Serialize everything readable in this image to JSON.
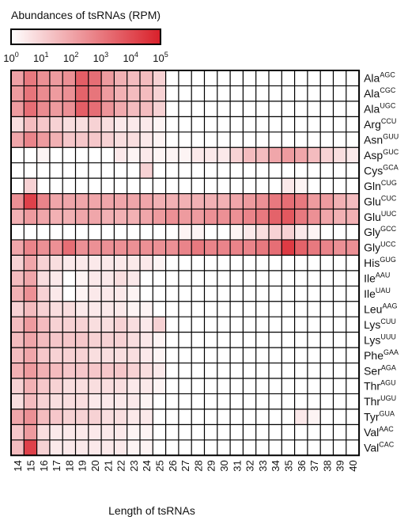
{
  "chart_data": {
    "type": "heatmap",
    "legend": {
      "title": "Abundances of tsRNAs (RPM)",
      "ticks": [
        "0",
        "1",
        "2",
        "3",
        "4",
        "5"
      ],
      "tick_base": "10",
      "color_low": "#ffffff",
      "color_high": "#d9202a",
      "range_log10": [
        0,
        5
      ]
    },
    "xlabel": "Length of tsRNAs",
    "x_labels": [
      "14",
      "15",
      "16",
      "17",
      "18",
      "19",
      "20",
      "21",
      "22",
      "23",
      "24",
      "25",
      "26",
      "27",
      "28",
      "29",
      "30",
      "31",
      "32",
      "33",
      "34",
      "35",
      "36",
      "37",
      "38",
      "39",
      "40"
    ],
    "rows": [
      {
        "aa": "Ala",
        "codon": "AGC",
        "values": [
          0.42,
          0.6,
          0.5,
          0.45,
          0.5,
          0.72,
          0.65,
          0.45,
          0.35,
          0.3,
          0.3,
          0.2,
          0,
          0,
          0,
          0,
          0,
          0,
          0,
          0,
          0,
          0,
          0,
          0,
          0,
          0,
          0
        ]
      },
      {
        "aa": "Ala",
        "codon": "CGC",
        "values": [
          0.45,
          0.62,
          0.52,
          0.45,
          0.5,
          0.7,
          0.62,
          0.45,
          0.35,
          0.3,
          0.3,
          0.2,
          0,
          0,
          0,
          0,
          0,
          0,
          0,
          0,
          0,
          0,
          0,
          0,
          0,
          0,
          0
        ]
      },
      {
        "aa": "Ala",
        "codon": "UGC",
        "values": [
          0.45,
          0.65,
          0.52,
          0.45,
          0.5,
          0.72,
          0.65,
          0.48,
          0.38,
          0.3,
          0.3,
          0.2,
          0,
          0,
          0,
          0,
          0,
          0,
          0,
          0,
          0,
          0,
          0,
          0,
          0,
          0,
          0
        ]
      },
      {
        "aa": "Arg",
        "codon": "CCU",
        "values": [
          0.15,
          0.3,
          0.25,
          0.2,
          0.15,
          0.15,
          0.2,
          0.15,
          0.1,
          0.1,
          0.1,
          0.05,
          0,
          0,
          0,
          0,
          0,
          0,
          0,
          0,
          0,
          0,
          0,
          0,
          0,
          0,
          0
        ]
      },
      {
        "aa": "Asn",
        "codon": "GUU",
        "values": [
          0.4,
          0.55,
          0.45,
          0.35,
          0.25,
          0.25,
          0.25,
          0.2,
          0.15,
          0.15,
          0.1,
          0.05,
          0,
          0,
          0,
          0,
          0,
          0,
          0,
          0,
          0,
          0,
          0,
          0,
          0,
          0,
          0
        ]
      },
      {
        "aa": "Asp",
        "codon": "GUC",
        "values": [
          0,
          0,
          0.05,
          0,
          0,
          0,
          0,
          0,
          0.1,
          0.05,
          0.1,
          0.05,
          0.05,
          0.05,
          0.1,
          0.1,
          0.1,
          0.2,
          0.3,
          0.3,
          0.4,
          0.45,
          0.4,
          0.3,
          0.2,
          0.15,
          0.1
        ]
      },
      {
        "aa": "Cys",
        "codon": "GCA",
        "values": [
          0,
          0,
          0,
          0,
          0,
          0,
          0,
          0,
          0,
          0,
          0.2,
          0,
          0,
          0,
          0,
          0,
          0,
          0,
          0,
          0,
          0,
          0,
          0,
          0,
          0,
          0,
          0
        ]
      },
      {
        "aa": "Gln",
        "codon": "CUG",
        "values": [
          0,
          0.2,
          0,
          0,
          0,
          0,
          0,
          0,
          0,
          0,
          0,
          0,
          0,
          0,
          0,
          0,
          0,
          0,
          0,
          0,
          0,
          0.1,
          0.05,
          0,
          0,
          0,
          0
        ]
      },
      {
        "aa": "Glu",
        "codon": "CUC",
        "values": [
          0.5,
          0.85,
          0.55,
          0.4,
          0.4,
          0.4,
          0.4,
          0.4,
          0.4,
          0.4,
          0.4,
          0.35,
          0.35,
          0.35,
          0.35,
          0.35,
          0.35,
          0.4,
          0.45,
          0.5,
          0.6,
          0.65,
          0.6,
          0.45,
          0.45,
          0.35,
          0.3
        ]
      },
      {
        "aa": "Glu",
        "codon": "UUC",
        "values": [
          0.35,
          0.45,
          0.4,
          0.35,
          0.35,
          0.4,
          0.4,
          0.35,
          0.35,
          0.35,
          0.4,
          0.45,
          0.5,
          0.45,
          0.45,
          0.5,
          0.5,
          0.5,
          0.55,
          0.6,
          0.7,
          0.75,
          0.6,
          0.5,
          0.4,
          0.35,
          0.35
        ]
      },
      {
        "aa": "Gly",
        "codon": "GCC",
        "values": [
          0,
          0,
          0,
          0,
          0,
          0,
          0,
          0,
          0,
          0,
          0,
          0,
          0,
          0.05,
          0.05,
          0,
          0,
          0.05,
          0.1,
          0.15,
          0.2,
          0.2,
          0.1,
          0.05,
          0,
          0,
          0
        ]
      },
      {
        "aa": "Gly",
        "codon": "UCC",
        "values": [
          0.4,
          0.55,
          0.5,
          0.5,
          0.65,
          0.5,
          0.5,
          0.5,
          0.5,
          0.5,
          0.5,
          0.5,
          0.5,
          0.55,
          0.6,
          0.55,
          0.55,
          0.55,
          0.55,
          0.6,
          0.65,
          0.88,
          0.7,
          0.6,
          0.55,
          0.5,
          0.5
        ]
      },
      {
        "aa": "His",
        "codon": "GUG",
        "values": [
          0.2,
          0.4,
          0.2,
          0.15,
          0.1,
          0.1,
          0.1,
          0.1,
          0.1,
          0.1,
          0.1,
          0.05,
          0,
          0,
          0,
          0,
          0,
          0,
          0,
          0,
          0,
          0,
          0,
          0,
          0,
          0,
          0
        ]
      },
      {
        "aa": "Ile",
        "codon": "AAU",
        "values": [
          0.3,
          0.4,
          0.15,
          0.1,
          0,
          0.05,
          0.1,
          0.1,
          0.15,
          0.1,
          0,
          0,
          0,
          0,
          0,
          0,
          0,
          0,
          0,
          0,
          0,
          0,
          0,
          0,
          0,
          0,
          0
        ]
      },
      {
        "aa": "Ile",
        "codon": "UAU",
        "values": [
          0.35,
          0.5,
          0.2,
          0.1,
          0,
          0.05,
          0.1,
          0.1,
          0.1,
          0.05,
          0,
          0,
          0,
          0,
          0,
          0,
          0,
          0,
          0,
          0,
          0,
          0,
          0,
          0,
          0,
          0,
          0
        ]
      },
      {
        "aa": "Leu",
        "codon": "AAG",
        "values": [
          0.2,
          0.3,
          0.2,
          0.15,
          0.15,
          0.1,
          0.1,
          0.1,
          0.1,
          0.05,
          0.05,
          0,
          0,
          0,
          0,
          0,
          0,
          0,
          0,
          0,
          0,
          0,
          0,
          0,
          0,
          0,
          0
        ]
      },
      {
        "aa": "Lys",
        "codon": "CUU",
        "values": [
          0.3,
          0.45,
          0.3,
          0.2,
          0.2,
          0.2,
          0.15,
          0.15,
          0.2,
          0.15,
          0.1,
          0.2,
          0,
          0,
          0,
          0,
          0,
          0,
          0,
          0,
          0,
          0,
          0,
          0,
          0,
          0,
          0
        ]
      },
      {
        "aa": "Lys",
        "codon": "UUU",
        "values": [
          0.3,
          0.4,
          0.3,
          0.25,
          0.25,
          0.25,
          0.2,
          0.2,
          0.2,
          0.15,
          0.1,
          0.05,
          0,
          0,
          0,
          0,
          0,
          0,
          0,
          0,
          0,
          0,
          0,
          0,
          0,
          0,
          0
        ]
      },
      {
        "aa": "Phe",
        "codon": "GAA",
        "values": [
          0.3,
          0.4,
          0.25,
          0.2,
          0.2,
          0.2,
          0.15,
          0.15,
          0.15,
          0.15,
          0.1,
          0.05,
          0,
          0,
          0,
          0,
          0,
          0,
          0,
          0,
          0,
          0,
          0,
          0,
          0,
          0,
          0
        ]
      },
      {
        "aa": "Ser",
        "codon": "AGA",
        "values": [
          0.35,
          0.45,
          0.35,
          0.3,
          0.25,
          0.25,
          0.25,
          0.25,
          0.25,
          0.2,
          0.15,
          0.1,
          0,
          0,
          0,
          0,
          0,
          0,
          0,
          0,
          0,
          0,
          0,
          0,
          0,
          0,
          0
        ]
      },
      {
        "aa": "Thr",
        "codon": "AGU",
        "values": [
          0.2,
          0.35,
          0.25,
          0.2,
          0.15,
          0.15,
          0.15,
          0.15,
          0.15,
          0.1,
          0.1,
          0.05,
          0,
          0,
          0,
          0,
          0,
          0,
          0,
          0,
          0,
          0,
          0,
          0,
          0,
          0,
          0
        ]
      },
      {
        "aa": "Thr",
        "codon": "UGU",
        "values": [
          0.15,
          0.3,
          0.2,
          0.15,
          0.15,
          0.15,
          0.1,
          0.1,
          0.1,
          0.1,
          0.05,
          0,
          0,
          0,
          0,
          0,
          0,
          0,
          0,
          0,
          0,
          0,
          0,
          0,
          0,
          0,
          0
        ]
      },
      {
        "aa": "Tyr",
        "codon": "GUA",
        "values": [
          0.4,
          0.5,
          0.3,
          0.25,
          0.2,
          0.2,
          0.2,
          0.15,
          0.15,
          0.1,
          0.1,
          0,
          0,
          0,
          0,
          0,
          0,
          0,
          0,
          0,
          0,
          0,
          0.1,
          0.05,
          0,
          0,
          0
        ]
      },
      {
        "aa": "Val",
        "codon": "AAC",
        "values": [
          0.25,
          0.45,
          0.15,
          0.1,
          0.1,
          0.1,
          0.1,
          0.1,
          0.1,
          0.05,
          0.05,
          0,
          0,
          0,
          0,
          0,
          0,
          0,
          0,
          0,
          0,
          0,
          0,
          0,
          0,
          0,
          0
        ]
      },
      {
        "aa": "Val",
        "codon": "CAC",
        "values": [
          0.3,
          0.85,
          0.2,
          0.1,
          0.1,
          0.1,
          0.1,
          0.1,
          0.1,
          0.05,
          0.05,
          0,
          0,
          0,
          0,
          0,
          0,
          0,
          0,
          0,
          0,
          0,
          0,
          0,
          0,
          0,
          0
        ]
      }
    ],
    "value_note": "values are log10(RPM)/5"
  }
}
